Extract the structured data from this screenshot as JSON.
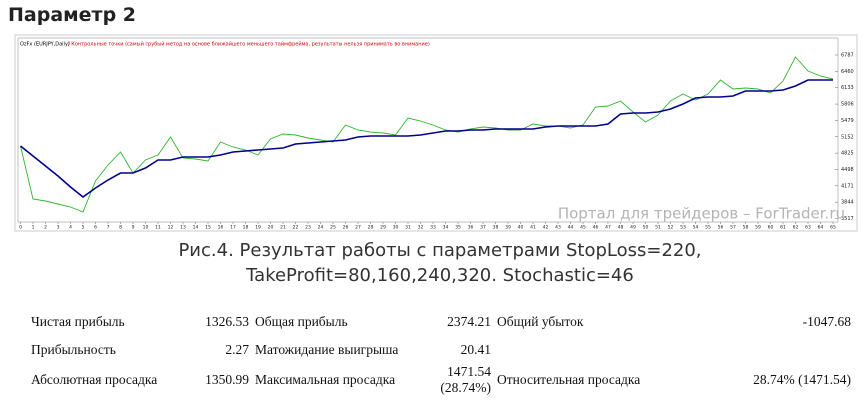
{
  "header": {
    "title": "Параметр 2"
  },
  "chart_data": {
    "type": "line",
    "title": "OzFx (EURJPY,Daily)",
    "subtitle": "/ Контрольные точки (самый грубый метод на основе ближайшего меньшего таймфрейма, результаты нельзя принимать во внимание)",
    "x": [
      0,
      1,
      2,
      3,
      4,
      5,
      6,
      7,
      8,
      9,
      10,
      11,
      12,
      13,
      14,
      15,
      16,
      17,
      18,
      19,
      20,
      21,
      22,
      23,
      24,
      25,
      26,
      27,
      28,
      29,
      30,
      31,
      32,
      33,
      34,
      35,
      36,
      37,
      38,
      39,
      40,
      41,
      42,
      43,
      44,
      45,
      46,
      47,
      48,
      49,
      50,
      51,
      52,
      53,
      54,
      55,
      56,
      57,
      58,
      59,
      60,
      61,
      62,
      63,
      64,
      65
    ],
    "series": [
      {
        "color": "#2fb52f",
        "values": [
          4967,
          3907,
          3867,
          3807,
          3747,
          3647,
          4267,
          4587,
          4847,
          4427,
          4687,
          4787,
          5147,
          4727,
          4707,
          4667,
          5047,
          4947,
          4887,
          4787,
          5107,
          5207,
          5187,
          5127,
          5087,
          5047,
          5387,
          5287,
          5247,
          5227,
          5187,
          5527,
          5467,
          5387,
          5287,
          5247,
          5307,
          5347,
          5327,
          5287,
          5287,
          5407,
          5367,
          5367,
          5327,
          5387,
          5747,
          5767,
          5867,
          5647,
          5447,
          5587,
          5867,
          6007,
          5887,
          6007,
          6287,
          6107,
          6127,
          6107,
          6027,
          6267,
          6747,
          6467,
          6367,
          6307
        ]
      },
      {
        "color": "#00008b",
        "values": [
          4967,
          4767,
          4567,
          4367,
          4147,
          3947,
          4127,
          4287,
          4427,
          4427,
          4527,
          4687,
          4687,
          4747,
          4747,
          4747,
          4787,
          4847,
          4867,
          4887,
          4907,
          4927,
          5007,
          5027,
          5047,
          5067,
          5087,
          5147,
          5167,
          5167,
          5167,
          5167,
          5187,
          5227,
          5267,
          5267,
          5287,
          5287,
          5307,
          5307,
          5307,
          5307,
          5347,
          5367,
          5367,
          5367,
          5367,
          5407,
          5607,
          5627,
          5627,
          5647,
          5707,
          5807,
          5927,
          5947,
          5947,
          5967,
          6067,
          6067,
          6067,
          6087,
          6167,
          6287,
          6287,
          6287
        ]
      }
    ],
    "xlim": [
      -0.2,
      65.4
    ],
    "xticks": [
      0,
      1,
      2,
      3,
      4,
      5,
      6,
      7,
      8,
      9,
      10,
      11,
      12,
      13,
      14,
      15,
      16,
      17,
      18,
      19,
      20,
      21,
      22,
      23,
      24,
      25,
      26,
      27,
      28,
      29,
      30,
      31,
      32,
      33,
      34,
      35,
      36,
      37,
      38,
      39,
      40,
      41,
      42,
      43,
      44,
      45,
      46,
      47,
      48,
      49,
      50,
      51,
      52,
      53,
      54,
      55,
      56,
      57,
      58,
      59,
      60,
      61,
      62,
      63,
      64,
      65
    ],
    "ylim": [
      3447,
      7127
    ],
    "yticks": [
      3517,
      3844,
      4171,
      4498,
      4825,
      5152,
      5479,
      5806,
      6133,
      6460,
      6787
    ],
    "grid": false
  },
  "watermark": "Портал для трейдеров – ForTrader.ru",
  "caption": "Рис.4. Результат работы с параметрами StopLoss=220, TakeProfit=80,160,240,320. Stochastic=46",
  "table": {
    "rows": [
      [
        "Чистая прибыль",
        "1326.53",
        "Общая прибыль",
        "2374.21",
        "Общий убыток",
        "-1047.68"
      ],
      [
        "Прибыльность",
        "2.27",
        "Матожидание выигрыша",
        "20.41"
      ],
      [
        "Абсолютная просадка",
        "1350.99",
        "Максимальная просадка",
        "1471.54 (28.74%)",
        "Относительная просадка",
        "28.74% (1471.54)"
      ]
    ]
  }
}
